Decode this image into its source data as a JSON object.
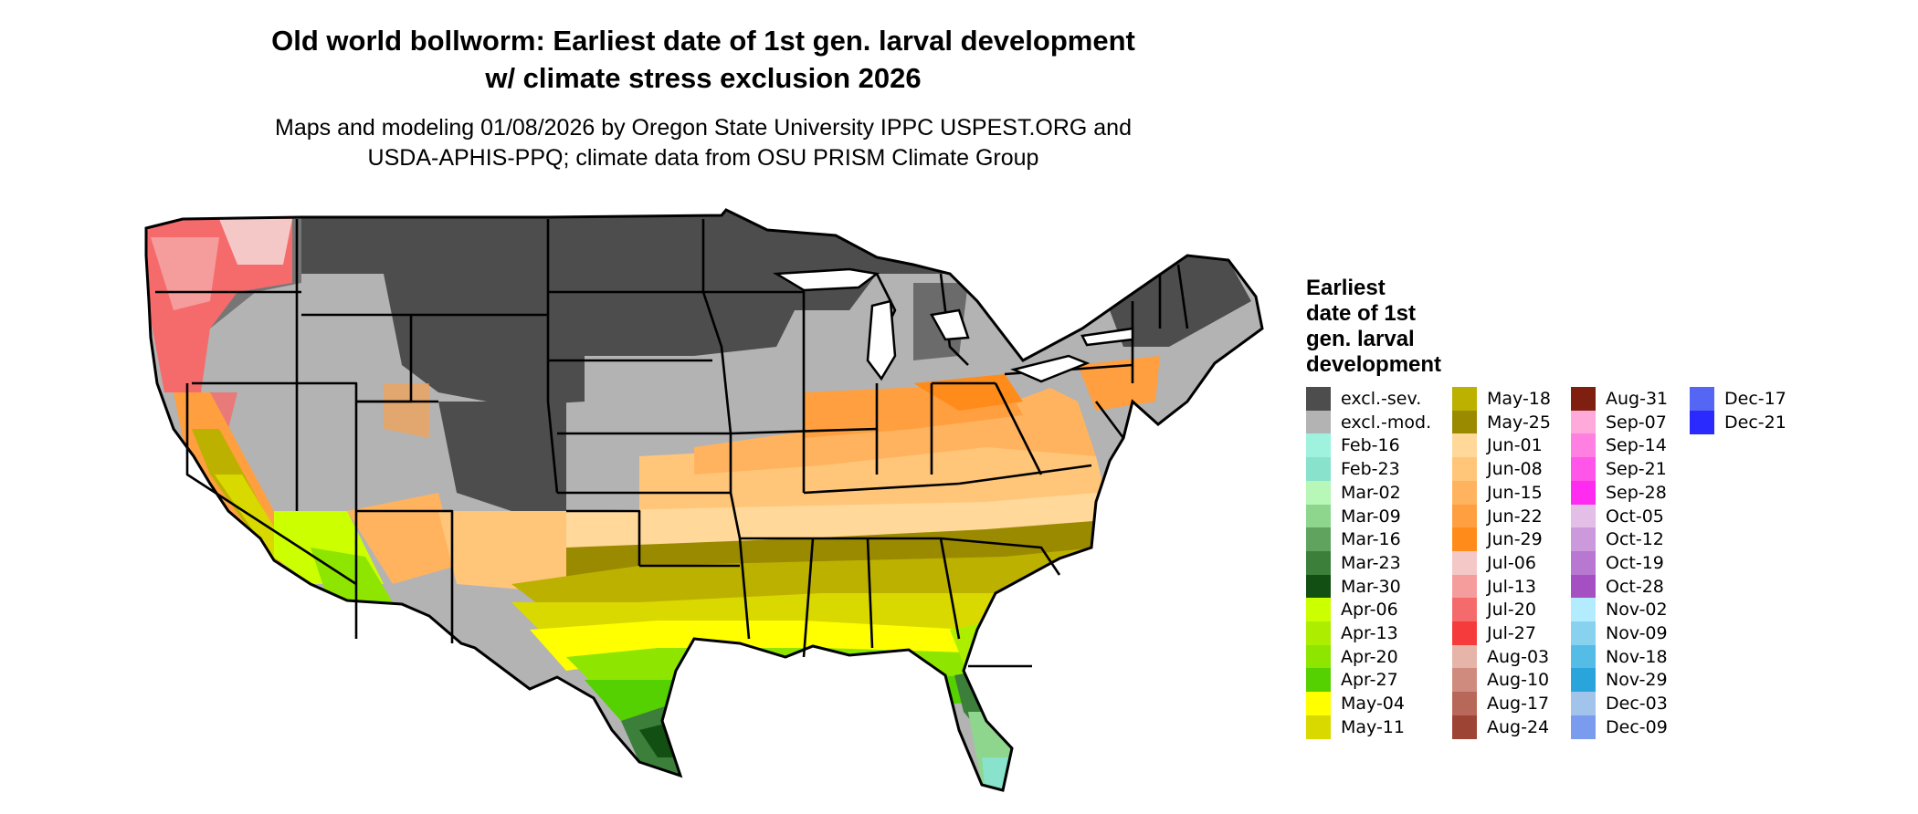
{
  "title": {
    "line1": "Old world bollworm: Earliest date of 1st gen. larval development",
    "line2": "w/ climate stress exclusion 2026"
  },
  "subtitle": {
    "line1": "Maps and modeling 01/08/2026 by Oregon State University IPPC USPEST.ORG and",
    "line2": "USDA-APHIS-PPQ; climate data from OSU PRISM Climate Group"
  },
  "legend": {
    "title_lines": [
      "Earliest",
      "date of 1st",
      "gen. larval",
      "development"
    ],
    "items": [
      {
        "label": "excl.-sev.",
        "color": "#4d4d4d"
      },
      {
        "label": "excl.-mod.",
        "color": "#b3b3b3"
      },
      {
        "label": "Feb-16",
        "color": "#9ff2de"
      },
      {
        "label": "Feb-23",
        "color": "#88e2cc"
      },
      {
        "label": "Mar-02",
        "color": "#b7f7b7"
      },
      {
        "label": "Mar-09",
        "color": "#8ed68e"
      },
      {
        "label": "Mar-16",
        "color": "#5fa35f"
      },
      {
        "label": "Mar-23",
        "color": "#3b7f3b"
      },
      {
        "label": "Mar-30",
        "color": "#124f12"
      },
      {
        "label": "Apr-06",
        "color": "#ccff00"
      },
      {
        "label": "Apr-13",
        "color": "#adee00"
      },
      {
        "label": "Apr-20",
        "color": "#8ee600"
      },
      {
        "label": "Apr-27",
        "color": "#55d000"
      },
      {
        "label": "May-04",
        "color": "#ffff00"
      },
      {
        "label": "May-11",
        "color": "#d9d900"
      },
      {
        "label": "May-18",
        "color": "#bdb100"
      },
      {
        "label": "May-25",
        "color": "#9a8a00"
      },
      {
        "label": "Jun-01",
        "color": "#ffd89a"
      },
      {
        "label": "Jun-08",
        "color": "#ffc67a"
      },
      {
        "label": "Jun-15",
        "color": "#ffb35f"
      },
      {
        "label": "Jun-22",
        "color": "#ff9f3f"
      },
      {
        "label": "Jun-29",
        "color": "#ff8c1a"
      },
      {
        "label": "Jul-06",
        "color": "#f5c8c8"
      },
      {
        "label": "Jul-13",
        "color": "#f59c9c"
      },
      {
        "label": "Jul-20",
        "color": "#f56b6b"
      },
      {
        "label": "Jul-27",
        "color": "#f53b3b"
      },
      {
        "label": "Aug-03",
        "color": "#e6b4a8"
      },
      {
        "label": "Aug-10",
        "color": "#cf8c7e"
      },
      {
        "label": "Aug-17",
        "color": "#b86858"
      },
      {
        "label": "Aug-24",
        "color": "#9e4434"
      },
      {
        "label": "Aug-31",
        "color": "#7f1f0f"
      },
      {
        "label": "Sep-07",
        "color": "#ffaadb"
      },
      {
        "label": "Sep-14",
        "color": "#ff80e0"
      },
      {
        "label": "Sep-21",
        "color": "#ff55e8"
      },
      {
        "label": "Sep-28",
        "color": "#ff2bf0"
      },
      {
        "label": "Oct-05",
        "color": "#e3bfe8"
      },
      {
        "label": "Oct-12",
        "color": "#cc99dd"
      },
      {
        "label": "Oct-19",
        "color": "#b877d0"
      },
      {
        "label": "Oct-28",
        "color": "#a550c2"
      },
      {
        "label": "Nov-02",
        "color": "#b3ecff"
      },
      {
        "label": "Nov-09",
        "color": "#88d2f0"
      },
      {
        "label": "Nov-18",
        "color": "#55bce6"
      },
      {
        "label": "Nov-29",
        "color": "#2aa5dc"
      },
      {
        "label": "Dec-03",
        "color": "#a3c4ea"
      },
      {
        "label": "Dec-09",
        "color": "#7b9bee"
      },
      {
        "label": "Dec-17",
        "color": "#5566f5"
      },
      {
        "label": "Dec-21",
        "color": "#2a2aff"
      }
    ]
  }
}
